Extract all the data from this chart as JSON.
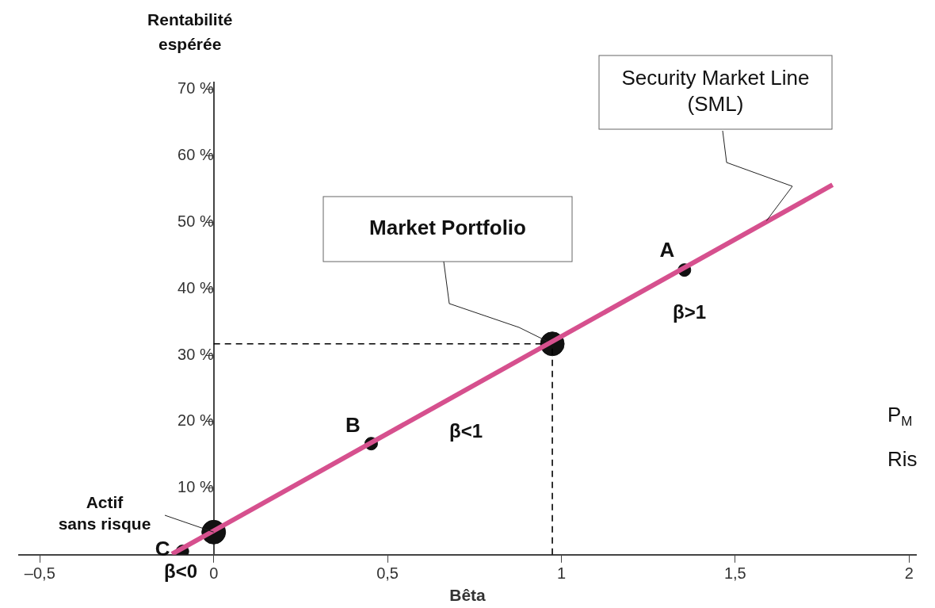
{
  "chart_data": {
    "type": "scatter",
    "xlabel": "Bêta",
    "ylabel": "Rentabilité espérée",
    "xlim": [
      -0.56,
      2.02
    ],
    "xticks": [
      {
        "value": -0.5,
        "label": "–0,5"
      },
      0,
      {
        "value": 0.5,
        "label": "0,5"
      },
      1,
      {
        "value": 1.5,
        "label": "1,5"
      },
      2
    ],
    "ylim": [
      0,
      71
    ],
    "yticks": [
      {
        "value": 10,
        "label": "10 %"
      },
      {
        "value": 20,
        "label": "20 %"
      },
      {
        "value": 30,
        "label": "30 %"
      },
      {
        "value": 40,
        "label": "40 %"
      },
      {
        "value": 50,
        "label": "50 %"
      },
      {
        "value": 60,
        "label": "60 %"
      },
      {
        "value": 70,
        "label": "70 %"
      }
    ],
    "grid": false,
    "legend": false,
    "marker": "circle",
    "series": [
      {
        "type": "scatter",
        "color": "#111111",
        "x": [
          1.354,
          0.453,
          -0.09
        ],
        "values": [
          42.8,
          16.7,
          0.5
        ]
      },
      {
        "type": "scatter",
        "color": "#111111",
        "x": [
          0,
          0.974
        ],
        "values": [
          3.4,
          31.7
        ]
      },
      {
        "type": "line",
        "color": "#000000",
        "x": [
          0,
          0.974
        ],
        "values": [
          31.7,
          31.7
        ],
        "line_style": "dashed",
        "marker": "none"
      },
      {
        "type": "line",
        "color": "#000000",
        "x": [
          0.974,
          0.974
        ],
        "values": [
          0,
          31.7
        ],
        "line_style": "dashed",
        "marker": "none"
      },
      {
        "type": "line",
        "color": "#d6508e",
        "x": [
          -0.12,
          1.78
        ],
        "values": [
          0.1,
          55.6
        ],
        "line_style": "solid",
        "marker": "none"
      }
    ],
    "annotations": [
      {
        "text": "Security Market Line (SML)",
        "x": 1.59,
        "y": 50.2
      },
      {
        "text": "Market Portfolio",
        "x": 0.974,
        "y": 31.7
      },
      {
        "text": "A",
        "x": 1.354,
        "y": 42.8
      },
      {
        "text": "B",
        "x": 0.453,
        "y": 16.7
      },
      {
        "text": "C",
        "x": -0.09,
        "y": 0.5
      },
      {
        "text": "Actif sans risque",
        "x": 0,
        "y": 3.4
      },
      "β>1",
      "β<1",
      "β<0",
      "P$_{M}$",
      "Ris"
    ]
  }
}
